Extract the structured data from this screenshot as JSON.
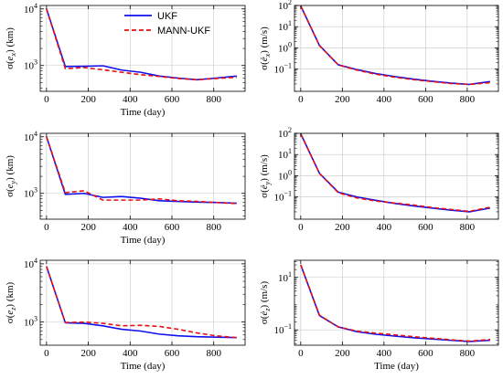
{
  "colors": {
    "ukf": "#1010ee",
    "mann": "#e81010",
    "grid": "#c8c8c8"
  },
  "legend": {
    "placement": "top-right of first panel",
    "entries": [
      {
        "label": "UKF",
        "series": "ukf"
      },
      {
        "label": "MANN-UKF",
        "series": "mann"
      }
    ]
  },
  "chart_data": [
    {
      "type": "line",
      "id": "ex",
      "xlabel": "Time (day)",
      "ylabel": "σ(e_x) (km)",
      "ylabel_main": "σ(",
      "ylabel_var": "e",
      "ylabel_sub": "x",
      "ylabel_rest": ") (km)",
      "xlim": [
        -30,
        950
      ],
      "ylim": [
        350,
        11500
      ],
      "yscale": "log",
      "xticks": [
        0,
        200,
        400,
        600,
        800
      ],
      "yticks": [
        {
          "value": 1000,
          "base": "10",
          "exp": "3"
        },
        {
          "value": 10000,
          "base": "10",
          "exp": "4"
        }
      ],
      "grid": true,
      "series": [
        {
          "name": "UKF",
          "key": "ukf",
          "x": [
            0,
            90,
            180,
            270,
            360,
            450,
            540,
            630,
            720,
            810,
            910
          ],
          "y": [
            10000,
            960,
            970,
            990,
            830,
            760,
            650,
            600,
            560,
            600,
            650
          ]
        },
        {
          "name": "MANN-UKF",
          "key": "mann",
          "x": [
            0,
            90,
            180,
            270,
            360,
            450,
            540,
            630,
            720,
            810,
            910
          ],
          "y": [
            10000,
            880,
            920,
            840,
            760,
            690,
            640,
            590,
            560,
            590,
            620
          ]
        }
      ]
    },
    {
      "type": "line",
      "id": "vx",
      "xlabel": "",
      "ylabel": "σ(ė_x) (m/s)",
      "ylabel_main": "σ(",
      "ylabel_var": "ė",
      "ylabel_sub": "x",
      "ylabel_rest": ") (m/s)",
      "xlim": [
        -30,
        950
      ],
      "ylim": [
        0.009,
        100
      ],
      "yscale": "log",
      "xticks": [
        0,
        200,
        400,
        600,
        800
      ],
      "yticks": [
        {
          "value": 0.1,
          "base": "10",
          "exp": "−1"
        },
        {
          "value": 1,
          "base": "10",
          "exp": "0"
        },
        {
          "value": 10,
          "base": "10",
          "exp": "1"
        },
        {
          "value": 100,
          "base": "10",
          "exp": "2"
        }
      ],
      "grid": true,
      "series": [
        {
          "name": "UKF",
          "key": "ukf",
          "x": [
            0,
            90,
            180,
            270,
            360,
            450,
            540,
            630,
            720,
            810,
            910
          ],
          "y": [
            95,
            1.3,
            0.16,
            0.095,
            0.062,
            0.045,
            0.034,
            0.027,
            0.022,
            0.019,
            0.026
          ]
        },
        {
          "name": "MANN-UKF",
          "key": "mann",
          "x": [
            0,
            90,
            180,
            270,
            360,
            450,
            540,
            630,
            720,
            810,
            910
          ],
          "y": [
            95,
            1.3,
            0.16,
            0.09,
            0.058,
            0.042,
            0.032,
            0.026,
            0.021,
            0.019,
            0.023
          ]
        }
      ]
    },
    {
      "type": "line",
      "id": "ey",
      "xlabel": "Time (day)",
      "ylabel": "σ(e_y) (km)",
      "ylabel_main": "σ(",
      "ylabel_var": "e",
      "ylabel_sub": "y",
      "ylabel_rest": ") (km)",
      "xlim": [
        -30,
        950
      ],
      "ylim": [
        350,
        11500
      ],
      "yscale": "log",
      "xticks": [
        0,
        200,
        400,
        600,
        800
      ],
      "yticks": [
        {
          "value": 1000,
          "base": "10",
          "exp": "3"
        },
        {
          "value": 10000,
          "base": "10",
          "exp": "4"
        }
      ],
      "grid": true,
      "series": [
        {
          "name": "UKF",
          "key": "ukf",
          "x": [
            0,
            90,
            180,
            270,
            360,
            450,
            540,
            630,
            720,
            810,
            910
          ],
          "y": [
            10000,
            960,
            1000,
            850,
            880,
            820,
            740,
            720,
            700,
            690,
            670
          ]
        },
        {
          "name": "MANN-UKF",
          "key": "mann",
          "x": [
            0,
            90,
            180,
            270,
            360,
            450,
            540,
            630,
            720,
            810,
            910
          ],
          "y": [
            10000,
            1030,
            1110,
            760,
            760,
            760,
            800,
            740,
            720,
            690,
            660
          ]
        }
      ]
    },
    {
      "type": "line",
      "id": "vy",
      "xlabel": "",
      "ylabel": "σ(ė_y) (m/s)",
      "ylabel_main": "σ(",
      "ylabel_var": "ė",
      "ylabel_sub": "y",
      "ylabel_rest": ") (m/s)",
      "xlim": [
        -30,
        950
      ],
      "ylim": [
        0.009,
        100
      ],
      "yscale": "log",
      "xticks": [
        0,
        200,
        400,
        600,
        800
      ],
      "yticks": [
        {
          "value": 0.1,
          "base": "10",
          "exp": "−1"
        },
        {
          "value": 1,
          "base": "10",
          "exp": "0"
        },
        {
          "value": 10,
          "base": "10",
          "exp": "1"
        },
        {
          "value": 100,
          "base": "10",
          "exp": "2"
        }
      ],
      "grid": true,
      "series": [
        {
          "name": "UKF",
          "key": "ukf",
          "x": [
            0,
            90,
            180,
            270,
            360,
            450,
            540,
            630,
            720,
            810,
            910
          ],
          "y": [
            95,
            1.3,
            0.17,
            0.1,
            0.07,
            0.05,
            0.038,
            0.03,
            0.024,
            0.02,
            0.03
          ]
        },
        {
          "name": "MANN-UKF",
          "key": "mann",
          "x": [
            0,
            90,
            180,
            270,
            360,
            450,
            540,
            630,
            720,
            810,
            910
          ],
          "y": [
            95,
            1.3,
            0.16,
            0.09,
            0.065,
            0.052,
            0.042,
            0.032,
            0.026,
            0.021,
            0.033
          ]
        }
      ]
    },
    {
      "type": "line",
      "id": "ez",
      "xlabel": "Time (day)",
      "ylabel": "σ(e_z) (km)",
      "ylabel_main": "σ(",
      "ylabel_var": "e",
      "ylabel_sub": "z",
      "ylabel_rest": ") (km)",
      "xlim": [
        -30,
        950
      ],
      "ylim": [
        400,
        11500
      ],
      "yscale": "log",
      "xticks": [
        0,
        200,
        400,
        600,
        800
      ],
      "yticks": [
        {
          "value": 1000,
          "base": "10",
          "exp": "3"
        },
        {
          "value": 10000,
          "base": "10",
          "exp": "4"
        }
      ],
      "grid": true,
      "series": [
        {
          "name": "UKF",
          "key": "ukf",
          "x": [
            0,
            90,
            180,
            270,
            360,
            450,
            540,
            630,
            720,
            810,
            910
          ],
          "y": [
            9000,
            970,
            950,
            860,
            750,
            700,
            620,
            580,
            560,
            550,
            540
          ]
        },
        {
          "name": "MANN-UKF",
          "key": "mann",
          "x": [
            0,
            90,
            180,
            270,
            360,
            450,
            540,
            630,
            720,
            810,
            910
          ],
          "y": [
            9000,
            980,
            1000,
            950,
            860,
            880,
            840,
            750,
            650,
            580,
            540
          ]
        }
      ]
    },
    {
      "type": "line",
      "id": "vz",
      "xlabel": "Time (day)",
      "ylabel": "σ(ė_z) (m/s)",
      "ylabel_main": "σ(",
      "ylabel_var": "ė",
      "ylabel_sub": "z",
      "ylabel_rest": ") (m/s)",
      "xlim": [
        -30,
        950
      ],
      "ylim": [
        0.026,
        45
      ],
      "yscale": "log",
      "xticks": [
        0,
        200,
        400,
        600,
        800
      ],
      "yticks": [
        {
          "value": 0.1,
          "base": "10",
          "exp": "−1"
        },
        {
          "value": 10,
          "base": "10",
          "exp": "1"
        }
      ],
      "grid": true,
      "series": [
        {
          "name": "UKF",
          "key": "ukf",
          "x": [
            0,
            90,
            180,
            270,
            360,
            450,
            540,
            630,
            720,
            810,
            910
          ],
          "y": [
            30,
            0.35,
            0.13,
            0.085,
            0.068,
            0.058,
            0.05,
            0.045,
            0.04,
            0.036,
            0.04
          ]
        },
        {
          "name": "MANN-UKF",
          "key": "mann",
          "x": [
            0,
            90,
            180,
            270,
            360,
            450,
            540,
            630,
            720,
            810,
            910
          ],
          "y": [
            30,
            0.36,
            0.13,
            0.09,
            0.075,
            0.065,
            0.055,
            0.048,
            0.042,
            0.037,
            0.043
          ]
        }
      ]
    }
  ]
}
